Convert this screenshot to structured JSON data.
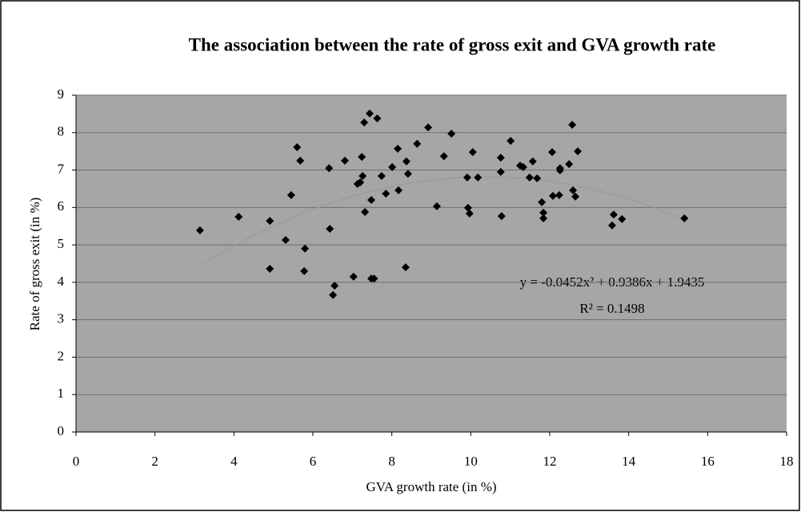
{
  "chart_data": {
    "type": "scatter",
    "title": "The association between the rate of gross exit and GVA growth rate",
    "x_label": "GVA growth rate (in %)",
    "y_label": "Rate of gross exit (in %)",
    "x": [
      3.14,
      4.12,
      4.91,
      4.91,
      5.31,
      5.45,
      5.6,
      5.68,
      5.8,
      5.78,
      6.41,
      6.43,
      6.55,
      6.51,
      6.81,
      7.03,
      7.2,
      7.13,
      7.26,
      7.24,
      7.3,
      7.32,
      7.44,
      7.48,
      7.48,
      7.55,
      7.63,
      7.74,
      7.85,
      8.01,
      8.15,
      8.17,
      8.35,
      8.37,
      8.41,
      8.64,
      8.92,
      9.14,
      9.32,
      9.51,
      9.91,
      9.93,
      9.97,
      10.05,
      10.18,
      10.76,
      10.76,
      10.78,
      11.01,
      11.25,
      11.33,
      11.49,
      11.57,
      11.68,
      11.8,
      11.84,
      11.84,
      12.06,
      12.08,
      12.24,
      12.26,
      12.26,
      12.49,
      12.57,
      12.59,
      12.65,
      12.71,
      13.58,
      13.62,
      13.83,
      15.41
    ],
    "y": [
      5.39,
      5.75,
      5.64,
      4.36,
      5.13,
      6.33,
      7.61,
      7.25,
      4.9,
      4.3,
      7.05,
      5.43,
      3.91,
      3.66,
      7.25,
      4.15,
      6.67,
      6.63,
      6.84,
      7.35,
      8.27,
      5.88,
      8.51,
      6.2,
      4.1,
      4.1,
      8.38,
      6.84,
      6.37,
      7.08,
      7.57,
      6.46,
      4.4,
      7.23,
      6.9,
      7.7,
      8.14,
      6.03,
      7.37,
      7.97,
      6.8,
      5.99,
      5.84,
      7.48,
      6.8,
      7.33,
      6.95,
      5.77,
      7.78,
      7.12,
      7.08,
      6.8,
      7.23,
      6.78,
      6.14,
      5.86,
      5.71,
      7.48,
      6.31,
      6.33,
      7.05,
      6.99,
      7.16,
      8.21,
      6.46,
      6.29,
      7.5,
      5.52,
      5.81,
      5.69,
      5.71
    ],
    "color": "#000000",
    "xlim": [
      0,
      18
    ],
    "ylim": [
      0,
      9
    ],
    "xticks": [
      0,
      2,
      4,
      6,
      8,
      10,
      12,
      14,
      16,
      18
    ],
    "yticks": [
      0,
      1,
      2,
      3,
      4,
      5,
      6,
      7,
      8,
      9
    ],
    "grid": true,
    "trendline": {
      "coefficients": [
        -0.0452,
        0.9386,
        1.9435
      ],
      "color": "#9a9a9a",
      "equation": "y = -0.0452x² + 0.9386x + 1.9435",
      "r_squared": "R² = 0.1498"
    }
  }
}
